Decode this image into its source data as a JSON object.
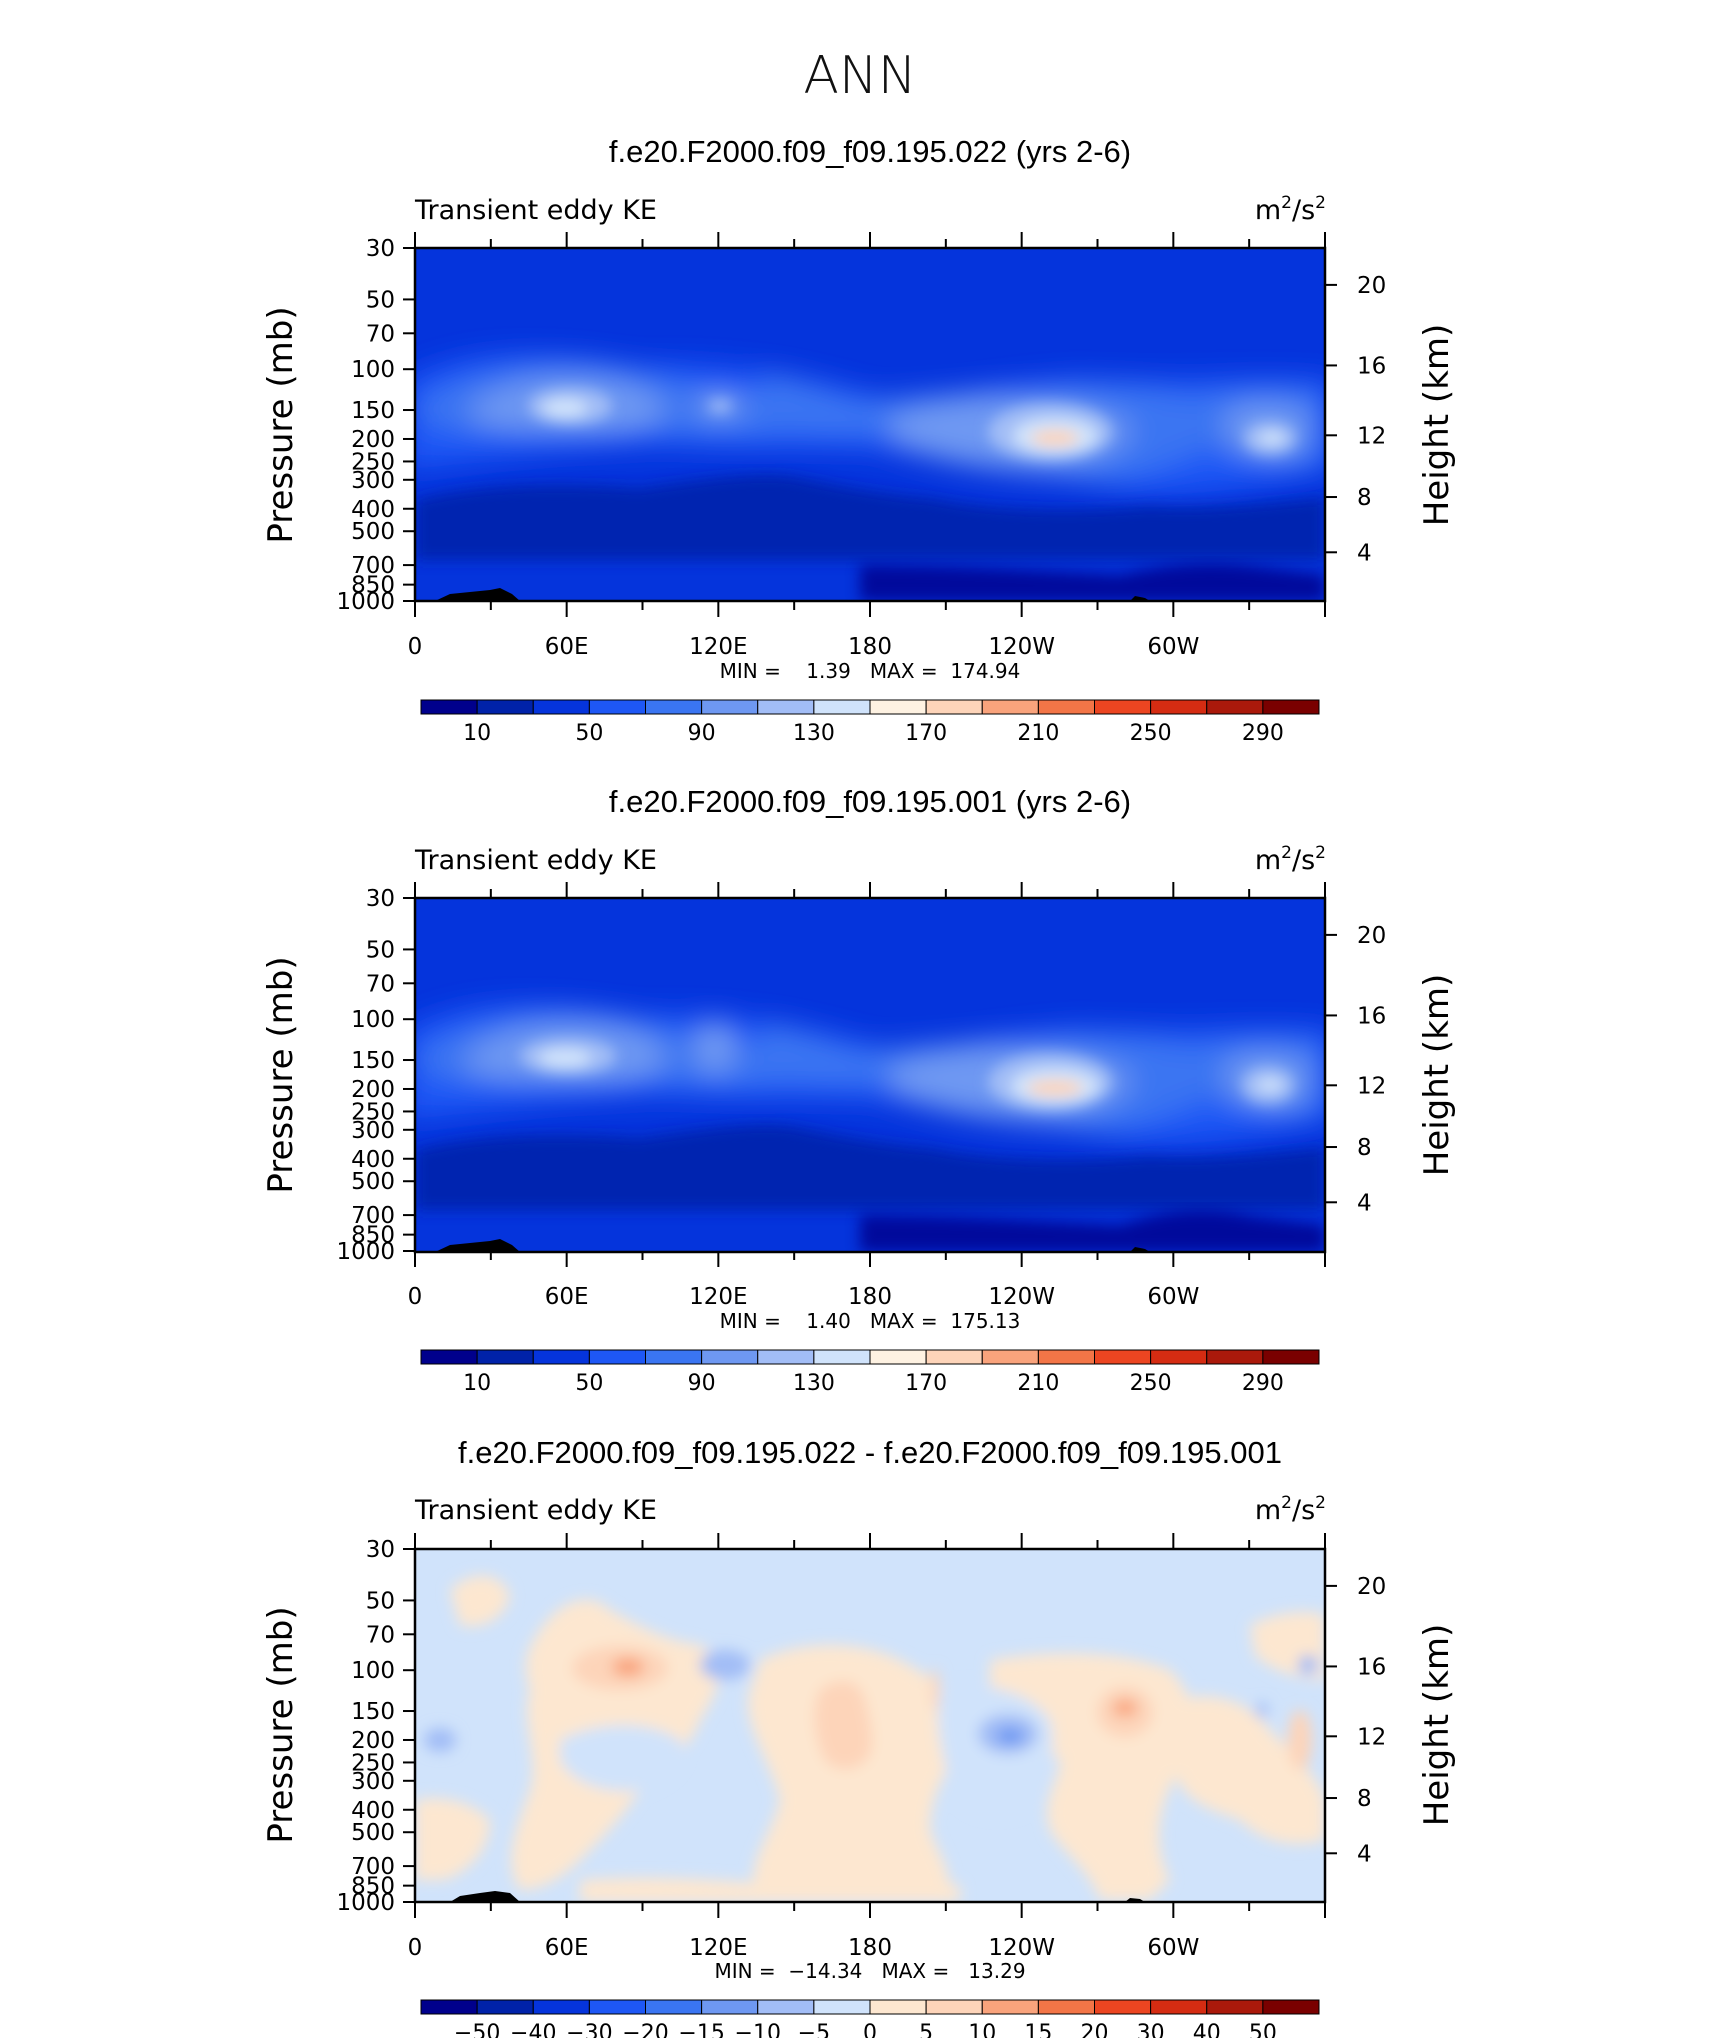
{
  "page_title": "ANN",
  "colormaps": {
    "absolute": [
      "#00008c",
      "#0022a9",
      "#0534dc",
      "#1e57f5",
      "#3a75f2",
      "#6e98f2",
      "#a2bdf6",
      "#d0e3fb",
      "#fef2e2",
      "#fdd4b9",
      "#f9a37c",
      "#f37547",
      "#ec4521",
      "#d52c12",
      "#aa190b",
      "#7a0000"
    ],
    "difference": [
      "#00008c",
      "#0022a9",
      "#0534dc",
      "#1e57f5",
      "#3a75f2",
      "#6e98f2",
      "#a2bdf6",
      "#d0e3fb",
      "#fde7d0",
      "#fdd4b9",
      "#f9a37c",
      "#f37547",
      "#ec4521",
      "#d52c12",
      "#aa190b",
      "#7a0000"
    ]
  },
  "panels": [
    {
      "title": "f.e20.F2000.f09_f09.195.022 (yrs 2-6)",
      "left_label": "Transient eddy KE",
      "units": "m²/s²",
      "units_base": "m",
      "units_mid": "/s",
      "units_sup": "2",
      "ylabel": "Pressure  (mb)",
      "ylabel_right": "Height  (km)",
      "pressure_ticks": [
        "30",
        "50",
        "70",
        "100",
        "150",
        "200",
        "250",
        "300",
        "400",
        "500",
        "700",
        "850",
        "1000"
      ],
      "pressure_values": [
        30,
        50,
        70,
        100,
        150,
        200,
        250,
        300,
        400,
        500,
        700,
        850,
        1000
      ],
      "height_ticks": [
        "20",
        "16",
        "12",
        "8",
        "4"
      ],
      "height_values": [
        20,
        16,
        12,
        8,
        4
      ],
      "lon_ticks": [
        "0",
        "60E",
        "120E",
        "180",
        "120W",
        "60W"
      ],
      "lon_values": [
        0,
        60,
        120,
        180,
        240,
        300
      ],
      "stats": "MIN =    1.39   MAX =  174.94",
      "colorbar_labels": [
        "10",
        "50",
        "90",
        "130",
        "170",
        "210",
        "250",
        "290"
      ],
      "colormap": "absolute"
    },
    {
      "title": "f.e20.F2000.f09_f09.195.001 (yrs 2-6)",
      "left_label": "Transient eddy KE",
      "units": "m²/s²",
      "units_base": "m",
      "units_mid": "/s",
      "units_sup": "2",
      "ylabel": "Pressure  (mb)",
      "ylabel_right": "Height  (km)",
      "pressure_ticks": [
        "30",
        "50",
        "70",
        "100",
        "150",
        "200",
        "250",
        "300",
        "400",
        "500",
        "700",
        "850",
        "1000"
      ],
      "pressure_values": [
        30,
        50,
        70,
        100,
        150,
        200,
        250,
        300,
        400,
        500,
        700,
        850,
        1000
      ],
      "height_ticks": [
        "20",
        "16",
        "12",
        "8",
        "4"
      ],
      "height_values": [
        20,
        16,
        12,
        8,
        4
      ],
      "lon_ticks": [
        "0",
        "60E",
        "120E",
        "180",
        "120W",
        "60W"
      ],
      "lon_values": [
        0,
        60,
        120,
        180,
        240,
        300
      ],
      "stats": "MIN =    1.40   MAX =  175.13",
      "colorbar_labels": [
        "10",
        "50",
        "90",
        "130",
        "170",
        "210",
        "250",
        "290"
      ],
      "colormap": "absolute"
    },
    {
      "title": "f.e20.F2000.f09_f09.195.022 - f.e20.F2000.f09_f09.195.001",
      "left_label": "Transient eddy KE",
      "units": "m²/s²",
      "units_base": "m",
      "units_mid": "/s",
      "units_sup": "2",
      "ylabel": "Pressure  (mb)",
      "ylabel_right": "Height  (km)",
      "pressure_ticks": [
        "30",
        "50",
        "70",
        "100",
        "150",
        "200",
        "250",
        "300",
        "400",
        "500",
        "700",
        "850",
        "1000"
      ],
      "pressure_values": [
        30,
        50,
        70,
        100,
        150,
        200,
        250,
        300,
        400,
        500,
        700,
        850,
        1000
      ],
      "height_ticks": [
        "20",
        "16",
        "12",
        "8",
        "4"
      ],
      "height_values": [
        20,
        16,
        12,
        8,
        4
      ],
      "lon_ticks": [
        "0",
        "60E",
        "120E",
        "180",
        "120W",
        "60W"
      ],
      "lon_values": [
        0,
        60,
        120,
        180,
        240,
        300
      ],
      "stats": "MIN =  −14.34   MAX =   13.29",
      "colorbar_labels": [
        "−50",
        "−40",
        "−30",
        "−20",
        "−15",
        "−10",
        "−5",
        "0",
        "5",
        "10",
        "15",
        "20",
        "30",
        "40",
        "50"
      ],
      "colormap": "difference"
    }
  ],
  "chart_data": [
    {
      "type": "heatmap",
      "title": "f.e20.F2000.f09_f09.195.022 (yrs 2-6)",
      "subtitle": "Transient eddy KE",
      "units": "m²/s²",
      "ylabel": "Pressure  (mb)",
      "ylabel_right": "Height  (km)",
      "xlim": [
        0,
        360
      ],
      "ylim": [
        1000,
        30
      ],
      "x_ticks": [
        "0",
        "60E",
        "120E",
        "180",
        "120W",
        "60W"
      ],
      "y_ticks": [
        30,
        50,
        70,
        100,
        150,
        200,
        250,
        300,
        400,
        500,
        700,
        850,
        1000
      ],
      "contour_levels": [
        10,
        30,
        50,
        70,
        90,
        110,
        130,
        150,
        170,
        190,
        210,
        230,
        250,
        270,
        290
      ],
      "min": 1.39,
      "max": 174.94,
      "maxima": [
        {
          "lon": 60,
          "pressure": 150,
          "value": 150
        },
        {
          "lon": 235,
          "pressure": 200,
          "value": 174.94
        },
        {
          "lon": 338,
          "pressure": 200,
          "value": 135
        }
      ]
    },
    {
      "type": "heatmap",
      "title": "f.e20.F2000.f09_f09.195.001 (yrs 2-6)",
      "subtitle": "Transient eddy KE",
      "units": "m²/s²",
      "ylabel": "Pressure  (mb)",
      "ylabel_right": "Height  (km)",
      "xlim": [
        0,
        360
      ],
      "ylim": [
        1000,
        30
      ],
      "x_ticks": [
        "0",
        "60E",
        "120E",
        "180",
        "120W",
        "60W"
      ],
      "y_ticks": [
        30,
        50,
        70,
        100,
        150,
        200,
        250,
        300,
        400,
        500,
        700,
        850,
        1000
      ],
      "contour_levels": [
        10,
        30,
        50,
        70,
        90,
        110,
        130,
        150,
        170,
        190,
        210,
        230,
        250,
        270,
        290
      ],
      "min": 1.4,
      "max": 175.13,
      "maxima": [
        {
          "lon": 60,
          "pressure": 150,
          "value": 140
        },
        {
          "lon": 235,
          "pressure": 200,
          "value": 175.13
        },
        {
          "lon": 338,
          "pressure": 200,
          "value": 140
        }
      ]
    },
    {
      "type": "heatmap",
      "title": "f.e20.F2000.f09_f09.195.022 - f.e20.F2000.f09_f09.195.001",
      "subtitle": "Transient eddy KE",
      "units": "m²/s²",
      "ylabel": "Pressure  (mb)",
      "ylabel_right": "Height  (km)",
      "xlim": [
        0,
        360
      ],
      "ylim": [
        1000,
        30
      ],
      "x_ticks": [
        "0",
        "60E",
        "120E",
        "180",
        "120W",
        "60W"
      ],
      "y_ticks": [
        30,
        50,
        70,
        100,
        150,
        200,
        250,
        300,
        400,
        500,
        700,
        850,
        1000
      ],
      "contour_levels": [
        -50,
        -40,
        -30,
        -20,
        -15,
        -10,
        -5,
        0,
        5,
        10,
        15,
        20,
        30,
        40,
        50
      ],
      "min": -14.34,
      "max": 13.29,
      "extrema": [
        {
          "lon": 85,
          "pressure": 100,
          "value": 13.29
        },
        {
          "lon": 237,
          "pressure": 200,
          "value": -14.34
        },
        {
          "lon": 280,
          "pressure": 150,
          "value": 11
        }
      ]
    }
  ]
}
